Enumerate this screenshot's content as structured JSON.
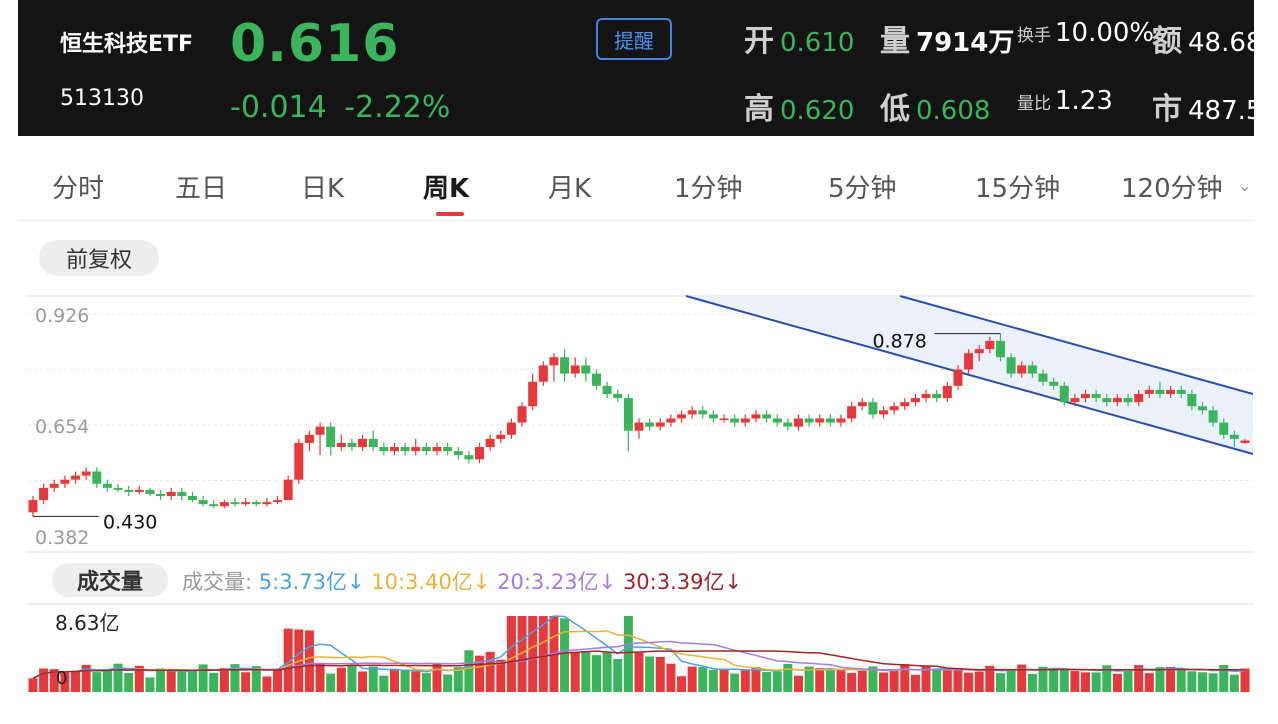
{
  "header": {
    "name": "恒生科技ETF",
    "code": "513130",
    "price": "0.616",
    "change": "-0.014",
    "change_pct": "-2.22%",
    "alert_label": "提醒",
    "stats": {
      "open_label": "开",
      "open": "0.610",
      "volume_label": "量",
      "volume": "7914万",
      "turnover_label": "换手",
      "turnover": "10.00%",
      "amount_label": "额",
      "amount": "48.68",
      "high_label": "高",
      "high": "0.620",
      "low_label": "低",
      "low": "0.608",
      "ratio_label": "量比",
      "ratio": "1.23",
      "mcap_label": "市",
      "mcap": "487.5"
    }
  },
  "tabs": [
    "分时",
    "五日",
    "日K",
    "周K",
    "月K",
    "1分钟",
    "5分钟",
    "15分钟",
    "120分钟"
  ],
  "active_tab": "周K",
  "adjust_label": "前复权",
  "colors": {
    "up": "#e5393b",
    "down": "#3bb55b",
    "ma5": "#4aa3e8",
    "ma10": "#e8b33a",
    "ma20": "#a77be0",
    "ma30": "#a0252a",
    "channel": "#2a4ea8"
  },
  "chart_data": {
    "type": "candlestick",
    "y_ticks": [
      "0.926",
      "0.654",
      "0.382"
    ],
    "ylim": [
      0.382,
      0.926
    ],
    "annotations": {
      "max": "0.878",
      "min": "0.430"
    },
    "candles": [
      [
        0.44,
        0.47,
        0.48,
        0.43
      ],
      [
        0.47,
        0.5,
        0.51,
        0.46
      ],
      [
        0.5,
        0.51,
        0.52,
        0.49
      ],
      [
        0.51,
        0.52,
        0.53,
        0.5
      ],
      [
        0.52,
        0.53,
        0.54,
        0.51
      ],
      [
        0.53,
        0.54,
        0.55,
        0.52
      ],
      [
        0.54,
        0.51,
        0.55,
        0.5
      ],
      [
        0.51,
        0.5,
        0.52,
        0.49
      ],
      [
        0.5,
        0.495,
        0.51,
        0.49
      ],
      [
        0.495,
        0.49,
        0.505,
        0.48
      ],
      [
        0.49,
        0.495,
        0.505,
        0.485
      ],
      [
        0.495,
        0.485,
        0.5,
        0.48
      ],
      [
        0.485,
        0.48,
        0.495,
        0.47
      ],
      [
        0.48,
        0.49,
        0.5,
        0.47
      ],
      [
        0.49,
        0.48,
        0.5,
        0.47
      ],
      [
        0.48,
        0.47,
        0.49,
        0.465
      ],
      [
        0.47,
        0.46,
        0.48,
        0.455
      ],
      [
        0.46,
        0.455,
        0.47,
        0.45
      ],
      [
        0.455,
        0.465,
        0.47,
        0.45
      ],
      [
        0.465,
        0.46,
        0.475,
        0.455
      ],
      [
        0.46,
        0.465,
        0.475,
        0.455
      ],
      [
        0.465,
        0.46,
        0.47,
        0.455
      ],
      [
        0.46,
        0.465,
        0.475,
        0.455
      ],
      [
        0.465,
        0.47,
        0.48,
        0.46
      ],
      [
        0.47,
        0.52,
        0.53,
        0.47
      ],
      [
        0.52,
        0.61,
        0.62,
        0.51
      ],
      [
        0.61,
        0.63,
        0.64,
        0.59
      ],
      [
        0.63,
        0.65,
        0.66,
        0.58
      ],
      [
        0.65,
        0.6,
        0.66,
        0.58
      ],
      [
        0.6,
        0.61,
        0.63,
        0.59
      ],
      [
        0.61,
        0.6,
        0.62,
        0.59
      ],
      [
        0.6,
        0.62,
        0.63,
        0.59
      ],
      [
        0.62,
        0.6,
        0.64,
        0.59
      ],
      [
        0.6,
        0.59,
        0.61,
        0.58
      ],
      [
        0.59,
        0.6,
        0.61,
        0.58
      ],
      [
        0.6,
        0.59,
        0.61,
        0.58
      ],
      [
        0.59,
        0.6,
        0.62,
        0.58
      ],
      [
        0.6,
        0.59,
        0.61,
        0.58
      ],
      [
        0.59,
        0.6,
        0.61,
        0.58
      ],
      [
        0.6,
        0.59,
        0.61,
        0.58
      ],
      [
        0.59,
        0.58,
        0.6,
        0.57
      ],
      [
        0.58,
        0.57,
        0.59,
        0.56
      ],
      [
        0.57,
        0.6,
        0.61,
        0.56
      ],
      [
        0.6,
        0.62,
        0.63,
        0.59
      ],
      [
        0.62,
        0.63,
        0.64,
        0.61
      ],
      [
        0.63,
        0.66,
        0.67,
        0.62
      ],
      [
        0.66,
        0.7,
        0.71,
        0.65
      ],
      [
        0.7,
        0.76,
        0.78,
        0.69
      ],
      [
        0.76,
        0.8,
        0.81,
        0.75
      ],
      [
        0.8,
        0.82,
        0.83,
        0.76
      ],
      [
        0.82,
        0.78,
        0.84,
        0.76
      ],
      [
        0.78,
        0.8,
        0.82,
        0.77
      ],
      [
        0.8,
        0.78,
        0.82,
        0.76
      ],
      [
        0.78,
        0.75,
        0.79,
        0.74
      ],
      [
        0.75,
        0.73,
        0.76,
        0.72
      ],
      [
        0.73,
        0.72,
        0.74,
        0.71
      ],
      [
        0.72,
        0.64,
        0.73,
        0.59
      ],
      [
        0.64,
        0.66,
        0.67,
        0.62
      ],
      [
        0.66,
        0.65,
        0.67,
        0.64
      ],
      [
        0.65,
        0.66,
        0.67,
        0.64
      ],
      [
        0.66,
        0.67,
        0.68,
        0.65
      ],
      [
        0.67,
        0.68,
        0.69,
        0.66
      ],
      [
        0.68,
        0.69,
        0.7,
        0.67
      ],
      [
        0.69,
        0.68,
        0.7,
        0.67
      ],
      [
        0.68,
        0.67,
        0.69,
        0.66
      ],
      [
        0.67,
        0.67,
        0.68,
        0.66
      ],
      [
        0.67,
        0.66,
        0.68,
        0.65
      ],
      [
        0.66,
        0.67,
        0.68,
        0.65
      ],
      [
        0.67,
        0.68,
        0.69,
        0.66
      ],
      [
        0.68,
        0.67,
        0.69,
        0.66
      ],
      [
        0.67,
        0.66,
        0.68,
        0.65
      ],
      [
        0.66,
        0.65,
        0.67,
        0.64
      ],
      [
        0.65,
        0.67,
        0.68,
        0.64
      ],
      [
        0.67,
        0.66,
        0.68,
        0.65
      ],
      [
        0.66,
        0.67,
        0.68,
        0.65
      ],
      [
        0.67,
        0.66,
        0.68,
        0.65
      ],
      [
        0.66,
        0.67,
        0.68,
        0.65
      ],
      [
        0.67,
        0.7,
        0.71,
        0.66
      ],
      [
        0.7,
        0.71,
        0.72,
        0.69
      ],
      [
        0.71,
        0.68,
        0.72,
        0.67
      ],
      [
        0.68,
        0.69,
        0.7,
        0.67
      ],
      [
        0.69,
        0.7,
        0.71,
        0.68
      ],
      [
        0.7,
        0.71,
        0.72,
        0.69
      ],
      [
        0.71,
        0.72,
        0.73,
        0.7
      ],
      [
        0.72,
        0.73,
        0.74,
        0.71
      ],
      [
        0.73,
        0.72,
        0.74,
        0.71
      ],
      [
        0.72,
        0.75,
        0.76,
        0.71
      ],
      [
        0.75,
        0.79,
        0.8,
        0.74
      ],
      [
        0.79,
        0.83,
        0.84,
        0.78
      ],
      [
        0.83,
        0.84,
        0.85,
        0.81
      ],
      [
        0.84,
        0.86,
        0.87,
        0.83
      ],
      [
        0.86,
        0.82,
        0.878,
        0.81
      ],
      [
        0.82,
        0.78,
        0.83,
        0.77
      ],
      [
        0.78,
        0.8,
        0.81,
        0.77
      ],
      [
        0.8,
        0.78,
        0.81,
        0.77
      ],
      [
        0.78,
        0.76,
        0.79,
        0.75
      ],
      [
        0.76,
        0.75,
        0.77,
        0.74
      ],
      [
        0.75,
        0.71,
        0.76,
        0.7
      ],
      [
        0.71,
        0.72,
        0.73,
        0.7
      ],
      [
        0.72,
        0.73,
        0.74,
        0.71
      ],
      [
        0.73,
        0.72,
        0.74,
        0.71
      ],
      [
        0.72,
        0.71,
        0.73,
        0.7
      ],
      [
        0.71,
        0.72,
        0.73,
        0.7
      ],
      [
        0.72,
        0.71,
        0.73,
        0.7
      ],
      [
        0.71,
        0.73,
        0.74,
        0.7
      ],
      [
        0.73,
        0.74,
        0.75,
        0.72
      ],
      [
        0.74,
        0.73,
        0.76,
        0.72
      ],
      [
        0.73,
        0.74,
        0.75,
        0.72
      ],
      [
        0.74,
        0.73,
        0.75,
        0.72
      ],
      [
        0.73,
        0.7,
        0.74,
        0.69
      ],
      [
        0.7,
        0.69,
        0.71,
        0.68
      ],
      [
        0.69,
        0.66,
        0.7,
        0.65
      ],
      [
        0.66,
        0.63,
        0.67,
        0.62
      ],
      [
        0.63,
        0.62,
        0.64,
        0.6
      ],
      [
        0.61,
        0.616,
        0.62,
        0.608
      ]
    ]
  },
  "volume": {
    "label": "成交量",
    "legend_prefix": "成交量:",
    "max_label": "8.63亿",
    "zero_label": "0",
    "ma5": "5:3.73亿↓",
    "ma10": "10:3.40亿↓",
    "ma20": "20:3.23亿↓",
    "ma30": "30:3.39亿↓"
  }
}
